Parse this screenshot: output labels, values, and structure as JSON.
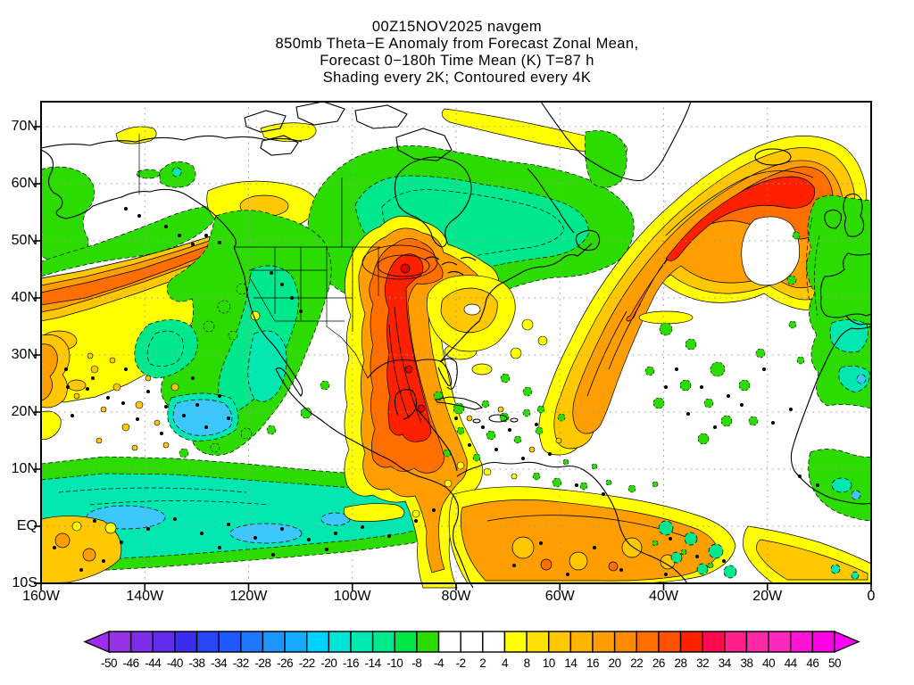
{
  "header": {
    "line1": "00Z15NOV2025 navgem",
    "line2": "850mb Theta−E Anomaly from Forecast Zonal Mean,",
    "line3": "Forecast 0−180h Time Mean (K) T=87 h",
    "line4": "Shading every 2K; Contoured every 4K"
  },
  "axes": {
    "lat_labels": [
      "70N",
      "60N",
      "50N",
      "40N",
      "30N",
      "20N",
      "10N",
      "EQ",
      "10S"
    ],
    "lon_labels": [
      "160W",
      "140W",
      "120W",
      "100W",
      "80W",
      "60W",
      "40W",
      "20W",
      "0"
    ]
  },
  "colorbar": {
    "labels": [
      "-50",
      "-46",
      "-44",
      "-40",
      "-38",
      "-34",
      "-32",
      "-28",
      "-26",
      "-22",
      "-20",
      "-16",
      "-14",
      "-10",
      "-8",
      "-4",
      "-2",
      "2",
      "4",
      "8",
      "10",
      "14",
      "16",
      "20",
      "22",
      "26",
      "28",
      "32",
      "34",
      "38",
      "40",
      "44",
      "46",
      "50"
    ],
    "cell_colors": [
      "#9632E6",
      "#7D2DE8",
      "#5F2CEB",
      "#3C2CF0",
      "#2845FA",
      "#1E5AFF",
      "#1E78FF",
      "#1E96FF",
      "#14AAFF",
      "#00D2FF",
      "#00E4D8",
      "#00E7B0",
      "#00E88C",
      "#00E646",
      "#2CDC00",
      "#FFFFFF",
      "#FFFFFF",
      "#FFFFFF",
      "#FFFF00",
      "#FFE100",
      "#FFC800",
      "#FFB400",
      "#FF9E00",
      "#FF8A00",
      "#FF6E00",
      "#FF5200",
      "#FF2000",
      "#FF0A50",
      "#FF1E8C",
      "#FF28A5",
      "#FF28BE",
      "#FF14D7",
      "#FF00E6"
    ],
    "arrow_left_color": "#A02CF0",
    "arrow_right_color": "#FF00FF"
  },
  "chart_data": {
    "type": "filled_contour_map",
    "model": "navgem",
    "valid_time": "00Z15NOV2025",
    "field": "850mb Theta-E Anomaly from Forecast Zonal Mean (K)",
    "forecast": "Forecast 0-180h Time Mean, T=87 h",
    "shading_interval_K": 2,
    "contour_interval_K": 4,
    "lon_range": [
      "160W",
      "0"
    ],
    "lat_range": [
      "10S",
      "75N"
    ],
    "lat_ticks": [
      "70N",
      "60N",
      "50N",
      "40N",
      "30N",
      "20N",
      "10N",
      "EQ",
      "10S"
    ],
    "lon_ticks": [
      "160W",
      "140W",
      "120W",
      "100W",
      "80W",
      "60W",
      "40W",
      "20W",
      "0"
    ],
    "shading_levels_K": [
      -50,
      -46,
      -44,
      -40,
      -38,
      -34,
      -32,
      -28,
      -26,
      -22,
      -20,
      -16,
      -14,
      -10,
      -8,
      -4,
      -2,
      2,
      4,
      8,
      10,
      14,
      16,
      20,
      22,
      26,
      28,
      32,
      34,
      38,
      40,
      44,
      46,
      50
    ],
    "palette": {
      "green": "#2CDC00",
      "mint": "#00E88C",
      "teal": "#00E7B0",
      "cyan": "#3CC8FF",
      "yellow": "#FFFF00",
      "gold": "#FFC800",
      "orange": "#FF9E00",
      "dark_orange": "#FF6E00",
      "red": "#FF2000",
      "deep_red": "#E60000"
    },
    "features": [
      {
        "region": "Central US to Mexico/Central America plume (100W-85W, 10N-48N)",
        "anomaly": "strong positive",
        "peak_K": "+28 to +32"
      },
      {
        "region": "North Atlantic hooked band from US east coast over Iceland (65W-10W, 30N-68N)",
        "anomaly": "strong positive band",
        "peak_K": "+24 to +30"
      },
      {
        "region": "Northeast Pacific diagonal band toward Pacific Northwest (160W-122W, 28N-48N)",
        "anomaly": "positive band",
        "peak_K": "+16 to +22"
      },
      {
        "region": "Central Pacific subtropics (160W-130W, 12N-35N)",
        "anomaly": "weak positive, speckled",
        "peak_K": "+4 to +12"
      },
      {
        "region": "Eastern Canada / Hudson Bay (115W-50W, 40N-64N)",
        "anomaly": "negative",
        "peak_K": "-10 to -14"
      },
      {
        "region": "Southwest US / northwest Mexico / Baja (120W-100W, 15N-40N)",
        "anomaly": "negative",
        "peak_K": "-10 to -18"
      },
      {
        "region": "Equatorial eastern Pacific (160W-95W, 10S-3N)",
        "anomaly": "negative",
        "peak_K": "-16 to -24"
      },
      {
        "region": "Europe and northwest Africa (20W-0, 10N-55N)",
        "anomaly": "negative",
        "peak_K": "-8 to -20"
      },
      {
        "region": "Amazon / northern South America (80W-35W, 0-10S)",
        "anomaly": "positive",
        "peak_K": "+12 to +18"
      },
      {
        "region": "Baffin Island to south Greenland band (80W-40W, 63N-70N)",
        "anomaly": "positive",
        "peak_K": "+4 to +8"
      },
      {
        "region": "Northwest Canada (120W-98W, 55N-62N)",
        "anomaly": "positive",
        "peak_K": "+4 to +10"
      },
      {
        "region": "Bering Sea / Gulf of Alaska (160W-130W, 45N-62N)",
        "anomaly": "negative",
        "peak_K": "-4 to -8"
      },
      {
        "region": "Caribbean and subtropical Atlantic (75W-20W, 10N-35N)",
        "anomaly": "weak negative, speckled",
        "peak_K": "-4 to -10"
      },
      {
        "region": "US southeast coast offshore (80W-68W, 30N-40N)",
        "anomaly": "positive",
        "peak_K": "+8 to +12"
      },
      {
        "region": "Equatorial Atlantic band (25W-0, 0-10S)",
        "anomaly": "positive",
        "peak_K": "+4 to +10"
      },
      {
        "region": "Far southwest corner (160W-145W, 4S-10S)",
        "anomaly": "positive, speckled",
        "peak_K": "+8 to +12"
      }
    ],
    "legend_position": "bottom colorbar with out-of-range arrows"
  }
}
